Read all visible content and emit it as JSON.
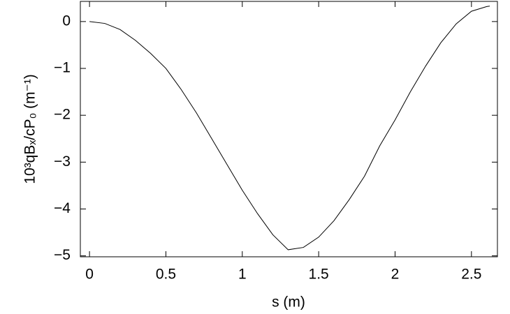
{
  "chart_data": {
    "type": "line",
    "xlabel": "s (m)",
    "ylabel": "10³qBₓ/cP₀ (m⁻¹)",
    "x": [
      0,
      0.1,
      0.2,
      0.3,
      0.4,
      0.5,
      0.6,
      0.7,
      0.8,
      0.9,
      1.0,
      1.1,
      1.2,
      1.3,
      1.4,
      1.5,
      1.6,
      1.7,
      1.8,
      1.9,
      2.0,
      2.1,
      2.2,
      2.3,
      2.4,
      2.5,
      2.6,
      2.62
    ],
    "series": [
      {
        "color": "#000000",
        "values": [
          0,
          -0.04,
          -0.17,
          -0.4,
          -0.68,
          -1.0,
          -1.45,
          -1.95,
          -2.5,
          -3.05,
          -3.6,
          -4.1,
          -4.55,
          -4.87,
          -4.82,
          -4.6,
          -4.25,
          -3.8,
          -3.3,
          -2.65,
          -2.1,
          -1.5,
          -0.95,
          -0.45,
          -0.05,
          0.22,
          0.32,
          0.33
        ]
      }
    ],
    "xlim": [
      -0.06,
      2.67
    ],
    "ylim": [
      -5.02,
      0.43
    ],
    "xticks": [
      0,
      0.5,
      1,
      1.5,
      2,
      2.5
    ],
    "yticks": [
      0,
      {
        "value": -1,
        "label": "−1"
      },
      {
        "value": -2,
        "label": "−2"
      },
      {
        "value": -3,
        "label": "−3"
      },
      {
        "value": -4,
        "label": "−4"
      },
      {
        "value": -5,
        "label": "−5"
      }
    ]
  }
}
